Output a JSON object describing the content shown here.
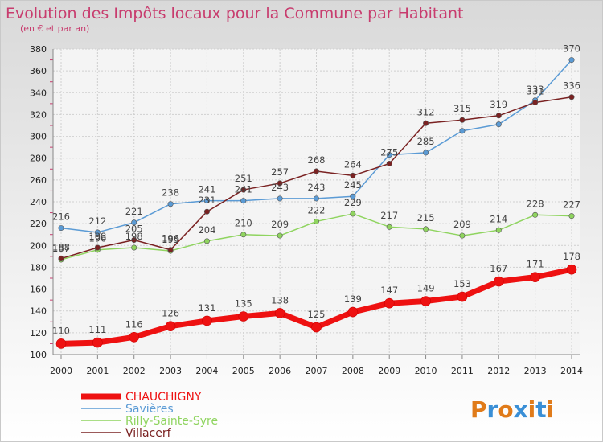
{
  "chart_data": {
    "type": "line",
    "title": "Evolution des Impôts locaux pour la Commune par Habitant",
    "subtitle": "(en € et par an)",
    "x": [
      "2000",
      "2001",
      "2002",
      "2003",
      "2004",
      "2005",
      "2006",
      "2007",
      "2008",
      "2009",
      "2010",
      "2011",
      "2012",
      "2013",
      "2014"
    ],
    "ylim": [
      100,
      380
    ],
    "yticks": [
      "100",
      "120",
      "140",
      "160",
      "180",
      "200",
      "220",
      "240",
      "260",
      "280",
      "300",
      "320",
      "340",
      "360",
      "380"
    ],
    "grid": true,
    "legend_position": "bottom-left",
    "series": [
      {
        "name": "CHAUCHIGNY",
        "color": "#ee1111",
        "values": [
          110,
          111,
          116,
          126,
          131,
          135,
          138,
          125,
          139,
          147,
          149,
          153,
          167,
          171,
          178
        ]
      },
      {
        "name": "Savières",
        "color": "#5b9bd5",
        "values": [
          216,
          212,
          221,
          238,
          241,
          241,
          243,
          243,
          245,
          283,
          285,
          305,
          311,
          333,
          370
        ]
      },
      {
        "name": "Rilly-Sainte-Syre",
        "color": "#8fd45f",
        "values": [
          187,
          196,
          198,
          195,
          204,
          210,
          209,
          222,
          229,
          217,
          215,
          209,
          214,
          228,
          227
        ]
      },
      {
        "name": "Villacerf",
        "color": "#7a2222",
        "values": [
          188,
          198,
          205,
          196,
          231,
          251,
          257,
          268,
          264,
          275,
          312,
          315,
          319,
          331,
          336
        ]
      }
    ],
    "data_labels": {
      "CHAUCHIGNY": [
        "110",
        "111",
        "116",
        "126",
        "131",
        "135",
        "138",
        "125",
        "139",
        "147",
        "149",
        "153",
        "167",
        "171",
        "178"
      ],
      "Savières": [
        "216",
        "212",
        "221",
        "238",
        "241",
        "241",
        "243",
        "243",
        "245",
        "",
        "285",
        "",
        "",
        "333",
        "370"
      ],
      "Rilly-Sainte-Syre": [
        "187",
        "196",
        "198",
        "195",
        "204",
        "210",
        "209",
        "222",
        "229",
        "217",
        "215",
        "209",
        "214",
        "228",
        "227"
      ],
      "Villacerf": [
        "188",
        "198",
        "205",
        "196",
        "231",
        "251",
        "257",
        "268",
        "264",
        "275",
        "312",
        "315",
        "319",
        "331",
        "336"
      ]
    }
  },
  "logo": {
    "text": "Proxiti",
    "colors": [
      "#e07b1a",
      "#3a8fd6",
      "#e07b1a",
      "#3a8fd6",
      "#e07b1a",
      "#3a8fd6",
      "#e07b1a"
    ]
  }
}
